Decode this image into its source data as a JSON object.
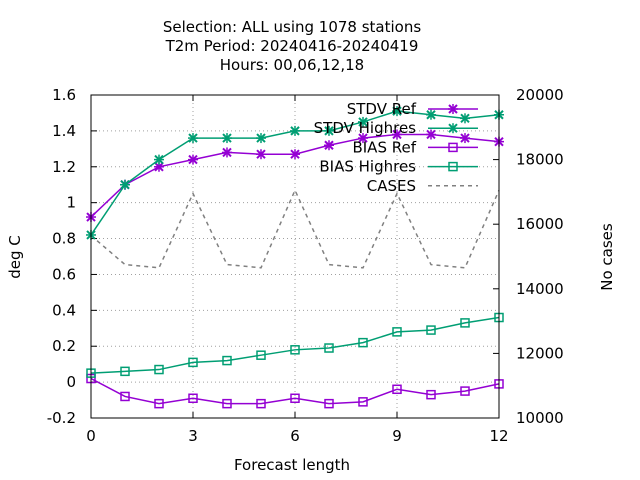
{
  "chart_data": {
    "type": "line",
    "title_lines": [
      "Selection: ALL using  1078 stations",
      "T2m   Period: 20240416-20240419",
      "Hours:  00,06,12,18"
    ],
    "xlabel": "Forecast length",
    "ylabel": "deg C",
    "y2label": "No cases",
    "xlim": [
      0,
      12
    ],
    "ylim": [
      -0.2,
      1.6
    ],
    "y2lim": [
      10000,
      20000
    ],
    "xticks": [
      0,
      3,
      6,
      9,
      12
    ],
    "yticks": [
      "-0.2",
      "0",
      "0.2",
      "0.4",
      "0.6",
      "0.8",
      "1",
      "1.2",
      "1.4",
      "1.6"
    ],
    "y2ticks": [
      "10000",
      "12000",
      "14000",
      "16000",
      "18000",
      "20000"
    ],
    "grid": true,
    "legend_position": "top-right",
    "x": [
      0,
      1,
      2,
      3,
      4,
      5,
      6,
      7,
      8,
      9,
      10,
      11,
      12
    ],
    "series": [
      {
        "name": "STDV Ref",
        "axis": "left",
        "color": "#9400d3",
        "marker": "x",
        "dash": false,
        "values": [
          0.92,
          1.1,
          1.2,
          1.24,
          1.28,
          1.27,
          1.27,
          1.32,
          1.36,
          1.38,
          1.38,
          1.36,
          1.34
        ]
      },
      {
        "name": "STDV Highres",
        "axis": "left",
        "color": "#009e73",
        "marker": "x",
        "dash": false,
        "values": [
          0.82,
          1.1,
          1.24,
          1.36,
          1.36,
          1.36,
          1.4,
          1.4,
          1.45,
          1.51,
          1.49,
          1.47,
          1.49
        ]
      },
      {
        "name": "BIAS Ref",
        "axis": "left",
        "color": "#9400d3",
        "marker": "square",
        "dash": false,
        "values": [
          0.02,
          -0.08,
          -0.12,
          -0.09,
          -0.12,
          -0.12,
          -0.09,
          -0.12,
          -0.11,
          -0.04,
          -0.07,
          -0.05,
          -0.01
        ]
      },
      {
        "name": "BIAS Highres",
        "axis": "left",
        "color": "#009e73",
        "marker": "square",
        "dash": false,
        "values": [
          0.05,
          0.06,
          0.07,
          0.11,
          0.12,
          0.15,
          0.18,
          0.19,
          0.22,
          0.28,
          0.29,
          0.33,
          0.36
        ]
      },
      {
        "name": "CASES",
        "axis": "right",
        "color": "#808080",
        "marker": "none",
        "dash": true,
        "values": [
          15650,
          14750,
          14650,
          16950,
          14750,
          14650,
          17050,
          14750,
          14650,
          16950,
          14750,
          14650,
          17050
        ]
      }
    ]
  }
}
